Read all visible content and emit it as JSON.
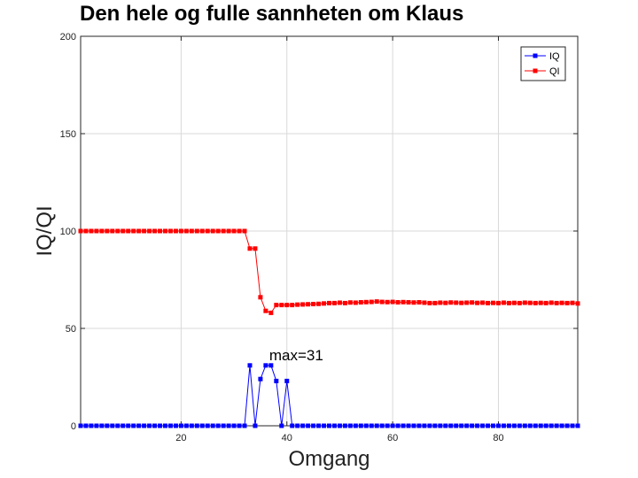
{
  "chart_data": {
    "type": "line",
    "title": "Den hele og fulle sannheten om Klaus",
    "xlabel": "Omgang",
    "ylabel": "IQ/QI",
    "xlim": [
      1,
      95
    ],
    "ylim": [
      0,
      200
    ],
    "xticks": [
      20,
      40,
      60,
      80
    ],
    "yticks": [
      0,
      50,
      100,
      150,
      200
    ],
    "grid": true,
    "legend_position": "top-right",
    "annotation": {
      "text": "max=31",
      "x": 37,
      "y": 35
    },
    "x": [
      1,
      2,
      3,
      4,
      5,
      6,
      7,
      8,
      9,
      10,
      11,
      12,
      13,
      14,
      15,
      16,
      17,
      18,
      19,
      20,
      21,
      22,
      23,
      24,
      25,
      26,
      27,
      28,
      29,
      30,
      31,
      32,
      33,
      34,
      35,
      36,
      37,
      38,
      39,
      40,
      41,
      42,
      43,
      44,
      45,
      46,
      47,
      48,
      49,
      50,
      51,
      52,
      53,
      54,
      55,
      56,
      57,
      58,
      59,
      60,
      61,
      62,
      63,
      64,
      65,
      66,
      67,
      68,
      69,
      70,
      71,
      72,
      73,
      74,
      75,
      76,
      77,
      78,
      79,
      80,
      81,
      82,
      83,
      84,
      85,
      86,
      87,
      88,
      89,
      90,
      91,
      92,
      93,
      94,
      95
    ],
    "series": [
      {
        "name": "IQ",
        "color": "#0000ff",
        "values": [
          0,
          0,
          0,
          0,
          0,
          0,
          0,
          0,
          0,
          0,
          0,
          0,
          0,
          0,
          0,
          0,
          0,
          0,
          0,
          0,
          0,
          0,
          0,
          0,
          0,
          0,
          0,
          0,
          0,
          0,
          0,
          0,
          31,
          0,
          24,
          31,
          31,
          23,
          0,
          23,
          0,
          0,
          0,
          0,
          0,
          0,
          0,
          0,
          0,
          0,
          0,
          0,
          0,
          0,
          0,
          0,
          0,
          0,
          0,
          0,
          0,
          0,
          0,
          0,
          0,
          0,
          0,
          0,
          0,
          0,
          0,
          0,
          0,
          0,
          0,
          0,
          0,
          0,
          0,
          0,
          0,
          0,
          0,
          0,
          0,
          0,
          0,
          0,
          0,
          0,
          0,
          0,
          0,
          0,
          0
        ]
      },
      {
        "name": "QI",
        "color": "#ff0000",
        "values": [
          100,
          100,
          100,
          100,
          100,
          100,
          100,
          100,
          100,
          100,
          100,
          100,
          100,
          100,
          100,
          100,
          100,
          100,
          100,
          100,
          100,
          100,
          100,
          100,
          100,
          100,
          100,
          100,
          100,
          100,
          100,
          100,
          91,
          91,
          66,
          59,
          58,
          62,
          62,
          62,
          62,
          62.2,
          62.3,
          62.4,
          62.5,
          62.6,
          62.8,
          63,
          63,
          63.2,
          63,
          63.3,
          63.2,
          63.4,
          63.5,
          63.6,
          63.8,
          63.6,
          63.5,
          63.6,
          63.4,
          63.5,
          63.4,
          63.3,
          63.4,
          63.2,
          63,
          63,
          63.2,
          63.1,
          63.3,
          63.2,
          63.1,
          63.2,
          63.3,
          63.1,
          63.2,
          63,
          63.1,
          63,
          63.2,
          63,
          63.1,
          63,
          63.2,
          63.1,
          63,
          63.1,
          63,
          63.2,
          63,
          63.1,
          63,
          63.1,
          62.8
        ]
      }
    ]
  }
}
